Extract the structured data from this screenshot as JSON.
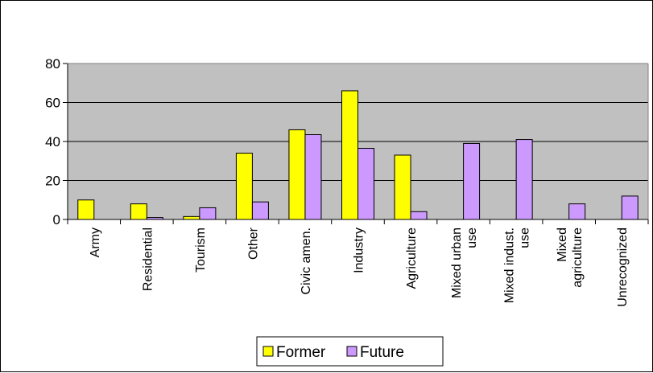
{
  "chart_data": {
    "type": "bar",
    "categories": [
      [
        "Army"
      ],
      [
        "Residential"
      ],
      [
        "Tourism"
      ],
      [
        "Other"
      ],
      [
        "Civic amen."
      ],
      [
        "Industry"
      ],
      [
        "Agriculture"
      ],
      [
        "Mixed urban",
        "use"
      ],
      [
        "Mixed indust.",
        "use"
      ],
      [
        "Mixed",
        "agriculture"
      ],
      [
        "Unrecognized"
      ]
    ],
    "series": [
      {
        "name": "Former",
        "color": "#ffff00",
        "values": [
          10,
          8,
          1.5,
          34,
          46,
          66,
          33,
          0,
          0,
          0,
          0
        ]
      },
      {
        "name": "Future",
        "color": "#cc99ff",
        "values": [
          0,
          1,
          6,
          9,
          43.5,
          36.5,
          4,
          39,
          41,
          8,
          12
        ]
      }
    ],
    "ylim": [
      0,
      80
    ],
    "yticks": [
      0,
      20,
      40,
      60,
      80
    ],
    "grid": true,
    "plot_background": "#c0c0c0",
    "legend_position": "bottom"
  }
}
